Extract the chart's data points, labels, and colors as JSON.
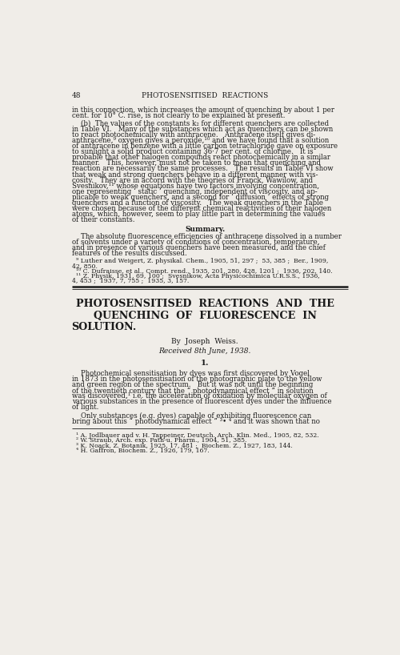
{
  "bg_color": "#f0ede8",
  "text_color": "#1a1a1a",
  "page_number": "48",
  "running_head": "PHOTOSENSITISED  REACTIONS",
  "para1_lines": [
    "in this connection, which increases the amount of quenching by about 1 per",
    "cent. for 10° C. rise, is not clearly to be explained at present."
  ],
  "para2_lines": [
    "    (b)  The values of the constants k₂ for different quenchers are collected",
    "in Table VI.   Many of the substances which act as quenchers can be shown",
    "to react photochemically with anthracene.   Anthracene itself gives di-",
    "anthracene,⁹ oxygen gives a peroxide,¹⁰ and we have found that a solution",
    "of anthracene in benzene with a little carbon tetrachloride gave on exposure",
    "to sunlight a solid product containing 36·7 per cent. of chlorine.   It is",
    "probable that other halogen compounds react photochemically in a similar",
    "manner.   This, however, must not be taken to mean that quenching and",
    "reaction are necessarily the same processes.   The results in Table VI show",
    "that weak and strong quenchers behave in a different manner with vis-",
    "cosity.   They are in accord with the theories of Franck, Wawilow, and",
    "Svesnikov,¹¹ whose equations have two factors involving concentration,",
    "one representing ‘ static ’ quenching, independent of viscosity, and ap-",
    "plicable to weak quenchers, and a second for ‘ diffusion ’ effects of strong",
    "quenchers and a function of viscosity.   The weak quenchers in the Table",
    "were chosen because of the different chemical reactivities of their halogen",
    "atoms, which, however, seem to play little part in determining the values",
    "of their constants."
  ],
  "summary_title": "Summary.",
  "summary_lines": [
    "    The absolute fluorescence efficiencies of anthracene dissolved in a number",
    "of solvents under a variety of conditions of concentration, temperature,",
    "and in presence of various quenchers have been measured, and the chief",
    "features of the results discussed."
  ],
  "footnotes_top": [
    "  ⁹ Luther and Weigert, Z. physikal. Chem., 1905, 51, 297 ;  53, 385 ;  Ber., 1909,",
    "42, 850.",
    "  ¹⁰ C. Dufraisse, et al., Compt. rend., 1935, 201, 280, 428, 1201 ;  1936, 202, 140.",
    "  ¹¹ Z. Physik, 1931, 69, 100 ;  Svesnikow, Acta Physicochimica U.R.S.S., 1936,",
    "4, 453 ;  1937, 7, 755 ;  1935, 3, 157."
  ],
  "article_title_line1": "PHOTOSENSITISED  REACTIONS  AND  THE",
  "article_title_line2": "QUENCHING  OF  FLUORESCENCE  IN",
  "article_title_line3": "SOLUTION.",
  "author_line": "By  Joseph  Weiss.",
  "received_line": "Received 8th June, 1938.",
  "section_number": "1.",
  "main_para1_lines": [
    "    Photochemical sensitisation by dyes was first discovered by Vogel",
    "in 1873 in the photosensitisation of the photographic plate to the yellow",
    "and green region of the spectrum.   But it was not until the beginning",
    "of the twentieth century that the “ photodynamical effect ” in solution",
    "was discovered,¹ i.e. the acceleration of oxidation by molecular oxygen of",
    "various substances in the presence of fluorescent dyes under the influence",
    "of light."
  ],
  "main_para2_lines": [
    "    Only substances (e.g. dyes) capable of exhibiting fluorescence can",
    "bring about this “ photodynamical effect ” ³• ⁴ and it was shown that no"
  ],
  "footnotes_bottom": [
    "  ¹ A. Jodlbauer and v. H. Tappeiner, Deutsch. Arch. Klin. Med., 1905, 82, 532.",
    "  ² W. Straub, Arch. exp. Path-u. Pharm., 1904, 51, 385.",
    "  ³ K. Noack, Z. Botanik, 1925, 17, 481 ;  Biochem. Z., 1927, 183, 144.",
    "  ⁴ H. Gaffron, Biochem. Z., 1926, 179, 167."
  ]
}
